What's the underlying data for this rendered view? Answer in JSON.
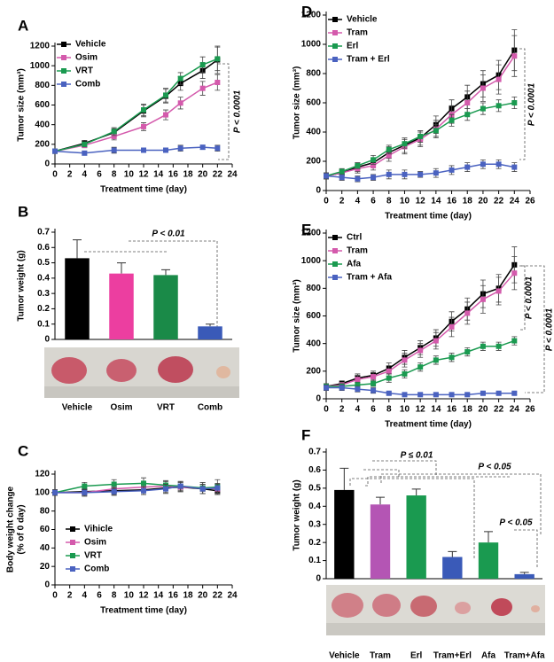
{
  "chart_data": [
    {
      "type": "line",
      "panel": "A",
      "xlabel": "Treatment time (day)",
      "ylabel": [
        "Tumor size (mm³)"
      ],
      "x": [
        0,
        4,
        8,
        12,
        15,
        17,
        20,
        22
      ],
      "xlim": [
        0,
        24
      ],
      "xticks": [
        0,
        2,
        4,
        6,
        8,
        10,
        12,
        14,
        16,
        18,
        20,
        22,
        24
      ],
      "ylim": [
        0,
        1200
      ],
      "yticks": [
        0,
        200,
        400,
        600,
        800,
        1000,
        1200
      ],
      "series": [
        {
          "name": "Vehicle",
          "color": "#000000",
          "values": [
            130,
            210,
            320,
            540,
            690,
            820,
            950,
            1060
          ],
          "errors": [
            20,
            30,
            40,
            60,
            70,
            70,
            80,
            140
          ]
        },
        {
          "name": "Osim",
          "color": "#d45aac",
          "values": [
            130,
            190,
            280,
            380,
            500,
            620,
            770,
            830
          ],
          "errors": [
            20,
            25,
            35,
            40,
            50,
            60,
            70,
            80
          ]
        },
        {
          "name": "VRT",
          "color": "#1a9a50",
          "values": [
            130,
            200,
            330,
            550,
            700,
            870,
            1010,
            1070
          ],
          "errors": [
            20,
            25,
            40,
            60,
            70,
            60,
            80,
            120
          ]
        },
        {
          "name": "Comb",
          "color": "#4a62c0",
          "values": [
            130,
            110,
            140,
            140,
            140,
            160,
            170,
            160
          ],
          "errors": [
            20,
            20,
            30,
            20,
            20,
            30,
            20,
            30
          ]
        }
      ],
      "annotations": [
        "P < 0.0001"
      ]
    },
    {
      "type": "bar",
      "panel": "B",
      "ylabel": [
        "Tumor weight (g)"
      ],
      "categories": [
        "Vehicle",
        "Osim",
        "VRT",
        "Comb"
      ],
      "values": [
        0.53,
        0.43,
        0.42,
        0.085
      ],
      "errors": [
        0.12,
        0.07,
        0.035,
        0.015
      ],
      "colors": [
        "#000000",
        "#ec3ea0",
        "#1a8a48",
        "#3a5ab8"
      ],
      "ylim": [
        0,
        0.7
      ],
      "yticks": [
        0,
        0.1,
        0.2,
        0.3,
        0.4,
        0.5,
        0.6,
        0.7
      ],
      "annotations": [
        "P < 0.01"
      ]
    },
    {
      "type": "line",
      "panel": "C",
      "xlabel": "Treatment time (day)",
      "ylabel": [
        "Body weight change",
        "(% of 0 day)"
      ],
      "x": [
        0,
        4,
        8,
        12,
        15,
        17,
        20,
        22
      ],
      "xlim": [
        0,
        24
      ],
      "xticks": [
        0,
        2,
        4,
        6,
        8,
        10,
        12,
        14,
        16,
        18,
        20,
        22,
        24
      ],
      "ylim": [
        0,
        120
      ],
      "yticks": [
        0,
        20,
        40,
        60,
        80,
        100,
        120
      ],
      "series": [
        {
          "name": "Vihicle",
          "color": "#000000",
          "values": [
            100,
            101,
            102,
            103,
            105,
            106,
            104,
            102
          ],
          "errors": [
            3,
            4,
            4,
            5,
            5,
            5,
            5,
            4
          ]
        },
        {
          "name": "Osim",
          "color": "#d45aac",
          "values": [
            100,
            100,
            104,
            106,
            107,
            106,
            105,
            104
          ],
          "errors": [
            3,
            4,
            4,
            5,
            5,
            5,
            6,
            5
          ]
        },
        {
          "name": "VRT",
          "color": "#1a9a50",
          "values": [
            100,
            107,
            109,
            110,
            108,
            107,
            105,
            106
          ],
          "errors": [
            3,
            4,
            5,
            6,
            5,
            5,
            6,
            8
          ]
        },
        {
          "name": "Comb",
          "color": "#4a62c0",
          "values": [
            100,
            100,
            101,
            102,
            104,
            107,
            104,
            105
          ],
          "errors": [
            3,
            3,
            4,
            4,
            5,
            5,
            5,
            5
          ]
        }
      ]
    },
    {
      "type": "line",
      "panel": "D",
      "xlabel": "Treatment time (day)",
      "ylabel": [
        "Tumor size (mm³)"
      ],
      "x": [
        0,
        2,
        4,
        6,
        8,
        10,
        12,
        14,
        16,
        18,
        20,
        22,
        24
      ],
      "xlim": [
        0,
        26
      ],
      "xticks": [
        0,
        2,
        4,
        6,
        8,
        10,
        12,
        14,
        16,
        18,
        20,
        22,
        24,
        26
      ],
      "ylim": [
        0,
        1200
      ],
      "yticks": [
        0,
        200,
        400,
        600,
        800,
        1000,
        1200
      ],
      "series": [
        {
          "name": "Vehicle",
          "color": "#000000",
          "values": [
            100,
            120,
            160,
            190,
            260,
            310,
            360,
            450,
            560,
            640,
            730,
            790,
            960
          ],
          "errors": [
            20,
            20,
            30,
            30,
            40,
            50,
            50,
            60,
            60,
            80,
            90,
            100,
            140
          ]
        },
        {
          "name": "Tram",
          "color": "#d45aac",
          "values": [
            100,
            120,
            150,
            170,
            240,
            300,
            350,
            420,
            520,
            600,
            700,
            760,
            920
          ],
          "errors": [
            20,
            20,
            30,
            30,
            40,
            50,
            50,
            60,
            60,
            80,
            90,
            100,
            140
          ]
        },
        {
          "name": "Erl",
          "color": "#1a9a50",
          "values": [
            100,
            130,
            170,
            210,
            280,
            320,
            370,
            410,
            480,
            520,
            560,
            580,
            600
          ],
          "errors": [
            20,
            20,
            20,
            30,
            30,
            30,
            40,
            40,
            40,
            40,
            40,
            40,
            40
          ]
        },
        {
          "name": "Tram + Erl",
          "color": "#4a62c0",
          "values": [
            100,
            90,
            80,
            90,
            110,
            110,
            110,
            120,
            140,
            160,
            180,
            180,
            160
          ],
          "errors": [
            20,
            20,
            20,
            20,
            30,
            30,
            20,
            30,
            30,
            30,
            30,
            30,
            30
          ]
        }
      ],
      "annotations": [
        "P < 0.0001"
      ]
    },
    {
      "type": "line",
      "panel": "E",
      "xlabel": "Treatment time (day)",
      "ylabel": [
        "Tumor size (mm³)"
      ],
      "x": [
        0,
        2,
        4,
        6,
        8,
        10,
        12,
        14,
        16,
        18,
        20,
        22,
        24
      ],
      "xlim": [
        0,
        26
      ],
      "xticks": [
        0,
        2,
        4,
        6,
        8,
        10,
        12,
        14,
        16,
        18,
        20,
        22,
        24,
        26
      ],
      "ylim": [
        0,
        1200
      ],
      "yticks": [
        0,
        200,
        400,
        600,
        800,
        1000,
        1200
      ],
      "series": [
        {
          "name": "Ctrl",
          "color": "#000000",
          "values": [
            90,
            110,
            150,
            170,
            220,
            300,
            370,
            440,
            560,
            650,
            760,
            800,
            970
          ],
          "errors": [
            20,
            20,
            30,
            30,
            40,
            50,
            50,
            60,
            70,
            80,
            100,
            100,
            130
          ]
        },
        {
          "name": "Tram",
          "color": "#d45aac",
          "values": [
            90,
            100,
            140,
            160,
            200,
            280,
            350,
            420,
            520,
            620,
            720,
            780,
            910
          ],
          "errors": [
            20,
            20,
            30,
            30,
            40,
            50,
            50,
            60,
            70,
            80,
            100,
            100,
            120
          ]
        },
        {
          "name": "Afa",
          "color": "#1a9a50",
          "values": [
            90,
            90,
            100,
            110,
            150,
            180,
            230,
            280,
            300,
            340,
            380,
            380,
            420
          ],
          "errors": [
            20,
            20,
            20,
            20,
            30,
            30,
            30,
            30,
            30,
            30,
            30,
            30,
            30
          ]
        },
        {
          "name": "Tram + Afa",
          "color": "#4a62c0",
          "values": [
            80,
            80,
            70,
            60,
            40,
            30,
            30,
            30,
            30,
            30,
            40,
            40,
            40
          ],
          "errors": [
            20,
            20,
            20,
            20,
            10,
            10,
            10,
            10,
            10,
            10,
            10,
            10,
            10
          ]
        }
      ],
      "annotations": [
        "P < 0.0001",
        "P < 0.0001"
      ]
    },
    {
      "type": "bar",
      "panel": "F",
      "ylabel": [
        "Tumor weight (g)"
      ],
      "categories": [
        "Vehicle",
        "Tram",
        "Erl",
        "Tram+Erl",
        "Afa",
        "Tram+Afa"
      ],
      "values": [
        0.49,
        0.41,
        0.46,
        0.12,
        0.2,
        0.025
      ],
      "errors": [
        0.12,
        0.04,
        0.035,
        0.03,
        0.06,
        0.01
      ],
      "colors": [
        "#000000",
        "#b455b4",
        "#1a9a50",
        "#3a5ab8",
        "#1a9a50",
        "#3a5ab8"
      ],
      "ylim": [
        0,
        0.7
      ],
      "yticks": [
        0,
        0.1,
        0.2,
        0.3,
        0.4,
        0.5,
        0.6,
        0.7
      ],
      "annotations": [
        "P ≤ 0.01",
        "P < 0.05",
        "P < 0.05"
      ]
    }
  ]
}
